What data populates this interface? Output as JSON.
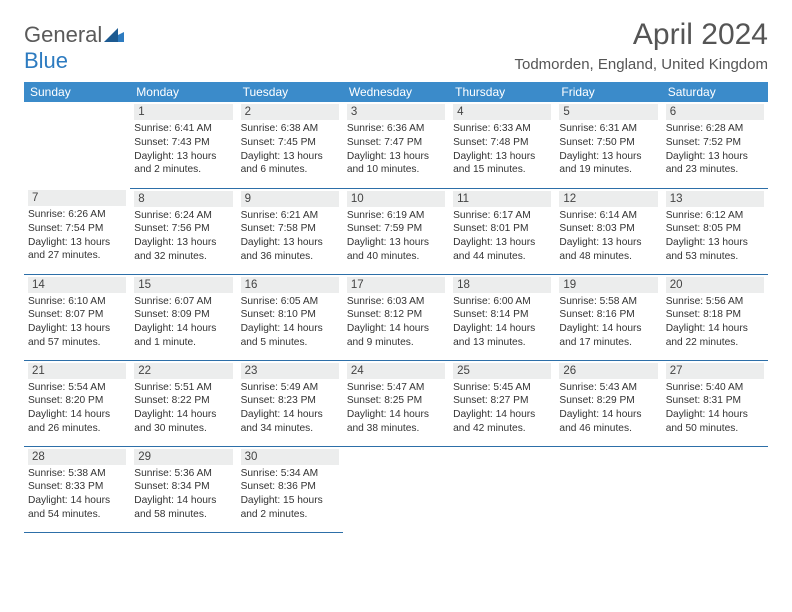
{
  "brand": {
    "part1": "General",
    "part2": "Blue"
  },
  "title": "April 2024",
  "location": "Todmorden, England, United Kingdom",
  "colors": {
    "header_bg": "#3b8bca",
    "header_text": "#ffffff",
    "row_divider": "#2d6fa8",
    "daynum_bg": "#eceded",
    "text": "#333333",
    "title_text": "#555555"
  },
  "weekdays": [
    "Sunday",
    "Monday",
    "Tuesday",
    "Wednesday",
    "Thursday",
    "Friday",
    "Saturday"
  ],
  "weeks": [
    [
      {
        "n": "",
        "sr": "",
        "ss": "",
        "dl": ""
      },
      {
        "n": "1",
        "sr": "Sunrise: 6:41 AM",
        "ss": "Sunset: 7:43 PM",
        "dl": "Daylight: 13 hours and 2 minutes."
      },
      {
        "n": "2",
        "sr": "Sunrise: 6:38 AM",
        "ss": "Sunset: 7:45 PM",
        "dl": "Daylight: 13 hours and 6 minutes."
      },
      {
        "n": "3",
        "sr": "Sunrise: 6:36 AM",
        "ss": "Sunset: 7:47 PM",
        "dl": "Daylight: 13 hours and 10 minutes."
      },
      {
        "n": "4",
        "sr": "Sunrise: 6:33 AM",
        "ss": "Sunset: 7:48 PM",
        "dl": "Daylight: 13 hours and 15 minutes."
      },
      {
        "n": "5",
        "sr": "Sunrise: 6:31 AM",
        "ss": "Sunset: 7:50 PM",
        "dl": "Daylight: 13 hours and 19 minutes."
      },
      {
        "n": "6",
        "sr": "Sunrise: 6:28 AM",
        "ss": "Sunset: 7:52 PM",
        "dl": "Daylight: 13 hours and 23 minutes."
      }
    ],
    [
      {
        "n": "7",
        "sr": "Sunrise: 6:26 AM",
        "ss": "Sunset: 7:54 PM",
        "dl": "Daylight: 13 hours and 27 minutes."
      },
      {
        "n": "8",
        "sr": "Sunrise: 6:24 AM",
        "ss": "Sunset: 7:56 PM",
        "dl": "Daylight: 13 hours and 32 minutes."
      },
      {
        "n": "9",
        "sr": "Sunrise: 6:21 AM",
        "ss": "Sunset: 7:58 PM",
        "dl": "Daylight: 13 hours and 36 minutes."
      },
      {
        "n": "10",
        "sr": "Sunrise: 6:19 AM",
        "ss": "Sunset: 7:59 PM",
        "dl": "Daylight: 13 hours and 40 minutes."
      },
      {
        "n": "11",
        "sr": "Sunrise: 6:17 AM",
        "ss": "Sunset: 8:01 PM",
        "dl": "Daylight: 13 hours and 44 minutes."
      },
      {
        "n": "12",
        "sr": "Sunrise: 6:14 AM",
        "ss": "Sunset: 8:03 PM",
        "dl": "Daylight: 13 hours and 48 minutes."
      },
      {
        "n": "13",
        "sr": "Sunrise: 6:12 AM",
        "ss": "Sunset: 8:05 PM",
        "dl": "Daylight: 13 hours and 53 minutes."
      }
    ],
    [
      {
        "n": "14",
        "sr": "Sunrise: 6:10 AM",
        "ss": "Sunset: 8:07 PM",
        "dl": "Daylight: 13 hours and 57 minutes."
      },
      {
        "n": "15",
        "sr": "Sunrise: 6:07 AM",
        "ss": "Sunset: 8:09 PM",
        "dl": "Daylight: 14 hours and 1 minute."
      },
      {
        "n": "16",
        "sr": "Sunrise: 6:05 AM",
        "ss": "Sunset: 8:10 PM",
        "dl": "Daylight: 14 hours and 5 minutes."
      },
      {
        "n": "17",
        "sr": "Sunrise: 6:03 AM",
        "ss": "Sunset: 8:12 PM",
        "dl": "Daylight: 14 hours and 9 minutes."
      },
      {
        "n": "18",
        "sr": "Sunrise: 6:00 AM",
        "ss": "Sunset: 8:14 PM",
        "dl": "Daylight: 14 hours and 13 minutes."
      },
      {
        "n": "19",
        "sr": "Sunrise: 5:58 AM",
        "ss": "Sunset: 8:16 PM",
        "dl": "Daylight: 14 hours and 17 minutes."
      },
      {
        "n": "20",
        "sr": "Sunrise: 5:56 AM",
        "ss": "Sunset: 8:18 PM",
        "dl": "Daylight: 14 hours and 22 minutes."
      }
    ],
    [
      {
        "n": "21",
        "sr": "Sunrise: 5:54 AM",
        "ss": "Sunset: 8:20 PM",
        "dl": "Daylight: 14 hours and 26 minutes."
      },
      {
        "n": "22",
        "sr": "Sunrise: 5:51 AM",
        "ss": "Sunset: 8:22 PM",
        "dl": "Daylight: 14 hours and 30 minutes."
      },
      {
        "n": "23",
        "sr": "Sunrise: 5:49 AM",
        "ss": "Sunset: 8:23 PM",
        "dl": "Daylight: 14 hours and 34 minutes."
      },
      {
        "n": "24",
        "sr": "Sunrise: 5:47 AM",
        "ss": "Sunset: 8:25 PM",
        "dl": "Daylight: 14 hours and 38 minutes."
      },
      {
        "n": "25",
        "sr": "Sunrise: 5:45 AM",
        "ss": "Sunset: 8:27 PM",
        "dl": "Daylight: 14 hours and 42 minutes."
      },
      {
        "n": "26",
        "sr": "Sunrise: 5:43 AM",
        "ss": "Sunset: 8:29 PM",
        "dl": "Daylight: 14 hours and 46 minutes."
      },
      {
        "n": "27",
        "sr": "Sunrise: 5:40 AM",
        "ss": "Sunset: 8:31 PM",
        "dl": "Daylight: 14 hours and 50 minutes."
      }
    ],
    [
      {
        "n": "28",
        "sr": "Sunrise: 5:38 AM",
        "ss": "Sunset: 8:33 PM",
        "dl": "Daylight: 14 hours and 54 minutes."
      },
      {
        "n": "29",
        "sr": "Sunrise: 5:36 AM",
        "ss": "Sunset: 8:34 PM",
        "dl": "Daylight: 14 hours and 58 minutes."
      },
      {
        "n": "30",
        "sr": "Sunrise: 5:34 AM",
        "ss": "Sunset: 8:36 PM",
        "dl": "Daylight: 15 hours and 2 minutes."
      },
      {
        "n": "",
        "sr": "",
        "ss": "",
        "dl": ""
      },
      {
        "n": "",
        "sr": "",
        "ss": "",
        "dl": ""
      },
      {
        "n": "",
        "sr": "",
        "ss": "",
        "dl": ""
      },
      {
        "n": "",
        "sr": "",
        "ss": "",
        "dl": ""
      }
    ]
  ]
}
